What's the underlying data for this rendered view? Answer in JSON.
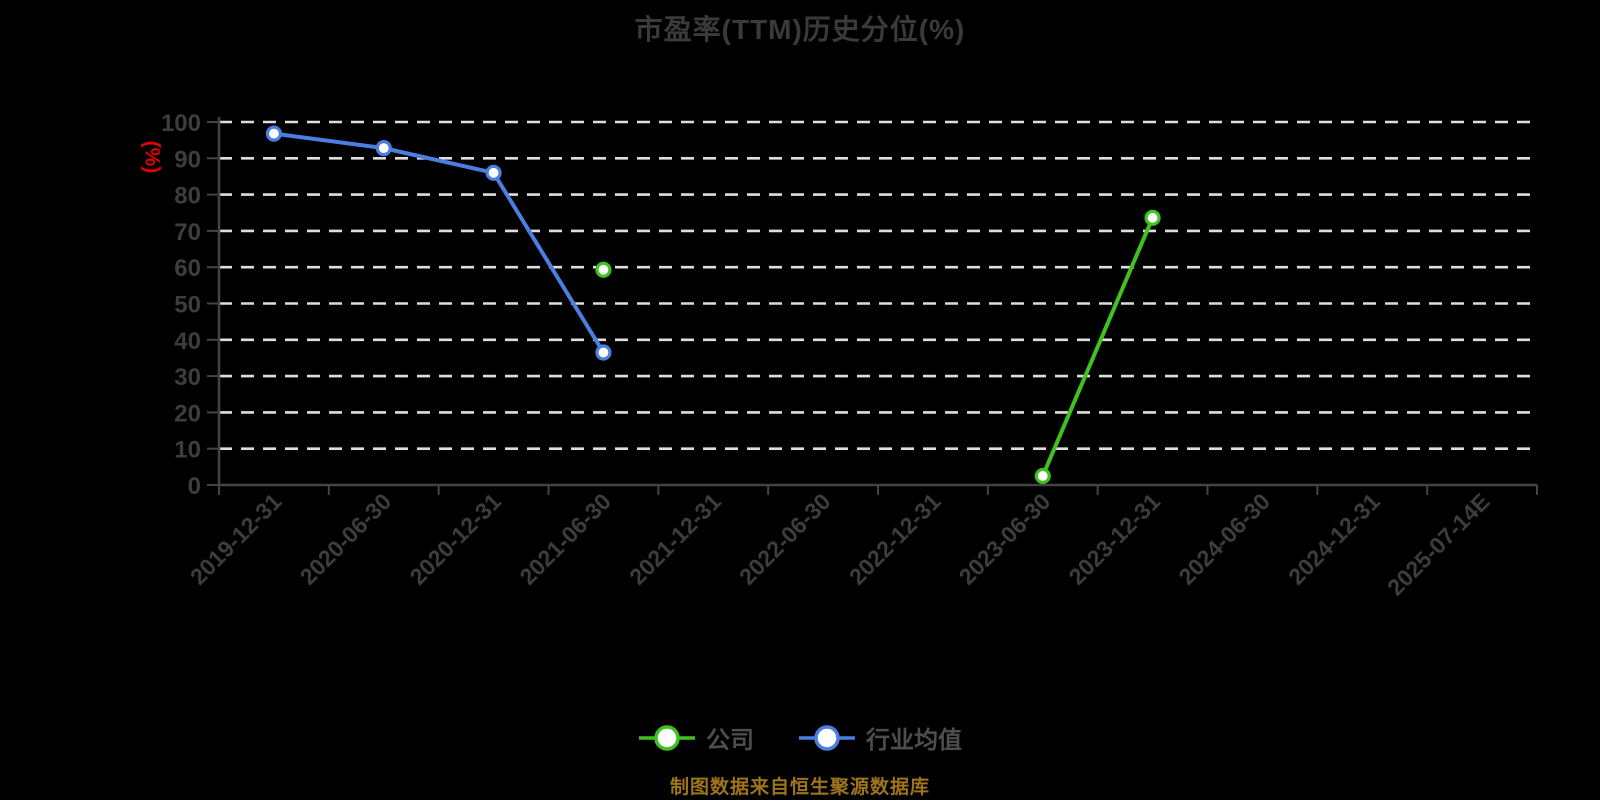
{
  "title": "市盈率(TTM)历史分位(%)",
  "footer": "制图数据来自恒生聚源数据库",
  "colors": {
    "background": "#000000",
    "title_text": "#3a3a3a",
    "axis_line": "#444444",
    "tick_label": "#3d3d3d",
    "gridline": "#dedede",
    "y_unit_label": "#e40000",
    "legend_label": "#4d4d4d",
    "footer_text": "#9d741b",
    "company_series": "#3fc11f",
    "industry_series": "#4a7ee0",
    "marker_fill": "#ffffff"
  },
  "chart_data": {
    "type": "line",
    "title": "市盈率(TTM)历史分位(%)",
    "xlabel": "",
    "ylabel": "(%)",
    "ylim": [
      0,
      100
    ],
    "ytick_interval": 10,
    "grid": "horizontal white dashed gridlines every 10",
    "legend_position": "bottom-center",
    "categories": [
      "2019-12-31",
      "2020-06-30",
      "2020-12-31",
      "2021-06-30",
      "2021-12-31",
      "2022-06-30",
      "2022-12-31",
      "2023-06-30",
      "2023-12-31",
      "2024-06-30",
      "2024-12-31",
      "2025-07-14E"
    ],
    "series": [
      {
        "id": "company",
        "name": "公司",
        "color": "#3fc11f",
        "values": [
          null,
          null,
          null,
          59.3,
          null,
          null,
          null,
          2.5,
          73.6,
          null,
          null,
          null
        ]
      },
      {
        "id": "industry-average",
        "name": "行业均值",
        "color": "#4a7ee0",
        "values": [
          96.8,
          92.8,
          86.0,
          36.5,
          null,
          null,
          null,
          null,
          null,
          null,
          null,
          null
        ]
      }
    ]
  }
}
